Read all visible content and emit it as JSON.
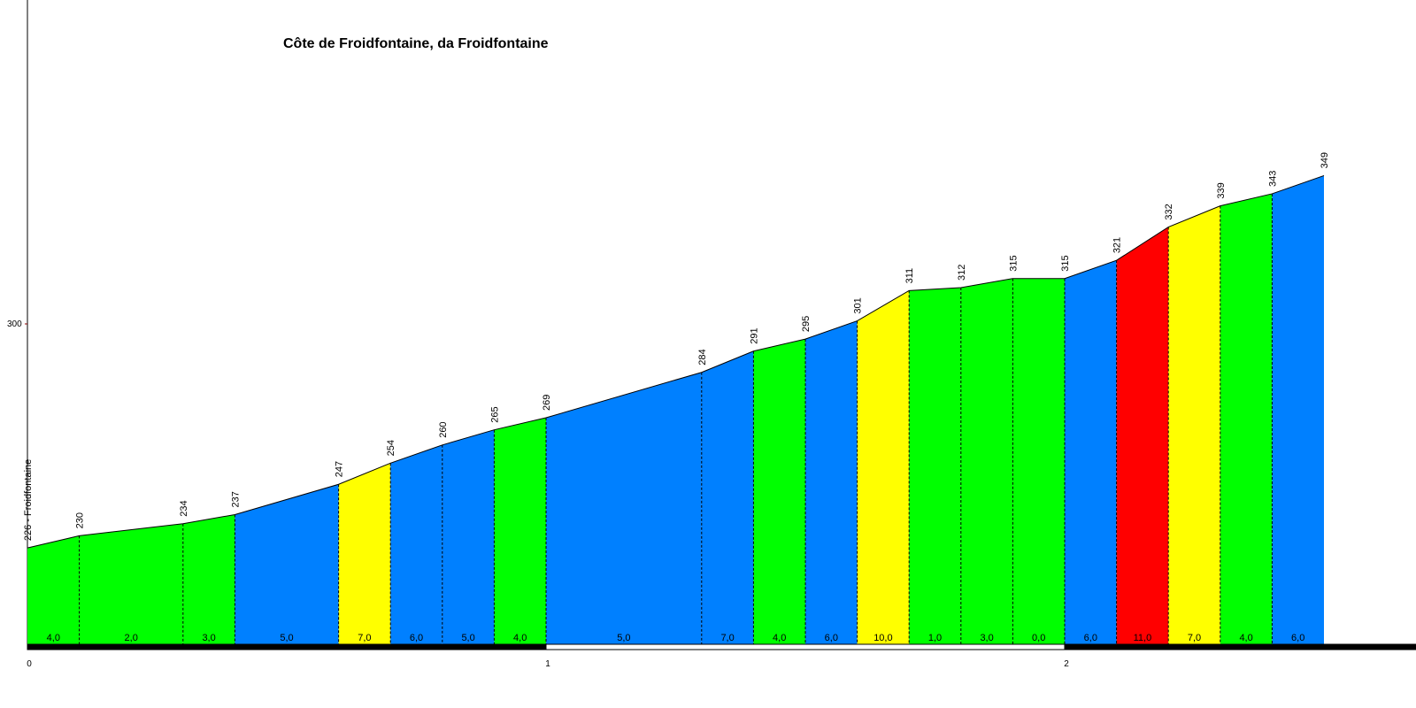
{
  "chart_data": {
    "type": "area",
    "title": "Côte de Froidfontaine, da Froidfontaine",
    "xlabel": "",
    "ylabel": "",
    "start_label": "Froidfontaine",
    "x_ticks": [
      0,
      1,
      2
    ],
    "y_ticks": [
      300
    ],
    "xlim": [
      0,
      2.6
    ],
    "ylim": [
      202,
      415
    ],
    "x": [
      0,
      0.1,
      0.3,
      0.4,
      0.6,
      0.7,
      0.8,
      0.9,
      1.0,
      1.3,
      1.4,
      1.5,
      1.6,
      1.7,
      1.8,
      1.9,
      2.0,
      2.1,
      2.2,
      2.3,
      2.4,
      2.5
    ],
    "elevations": [
      226,
      230,
      234,
      237,
      247,
      254,
      260,
      265,
      269,
      284,
      291,
      295,
      301,
      311,
      312,
      315,
      315,
      321,
      332,
      339,
      343,
      349
    ],
    "segments": [
      {
        "grade": "4,0",
        "color": "#00ff00"
      },
      {
        "grade": "2,0",
        "color": "#00ff00"
      },
      {
        "grade": "3,0",
        "color": "#00ff00"
      },
      {
        "grade": "5,0",
        "color": "#0080ff"
      },
      {
        "grade": "7,0",
        "color": "#ffff00"
      },
      {
        "grade": "6,0",
        "color": "#0080ff"
      },
      {
        "grade": "5,0",
        "color": "#0080ff"
      },
      {
        "grade": "4,0",
        "color": "#00ff00"
      },
      {
        "grade": "5,0",
        "color": "#0080ff"
      },
      {
        "grade": "7,0",
        "color": "#0080ff"
      },
      {
        "grade": "4,0",
        "color": "#00ff00"
      },
      {
        "grade": "6,0",
        "color": "#0080ff"
      },
      {
        "grade": "10,0",
        "color": "#ffff00"
      },
      {
        "grade": "1,0",
        "color": "#00ff00"
      },
      {
        "grade": "3,0",
        "color": "#00ff00"
      },
      {
        "grade": "0,0",
        "color": "#00ff00"
      },
      {
        "grade": "6,0",
        "color": "#0080ff"
      },
      {
        "grade": "11,0",
        "color": "#ff0000"
      },
      {
        "grade": "7,0",
        "color": "#ffff00"
      },
      {
        "grade": "4,0",
        "color": "#00ff00"
      },
      {
        "grade": "6,0",
        "color": "#0080ff"
      }
    ],
    "km_bar_colors": [
      "#000000",
      "#ffffff",
      "#000000"
    ],
    "grid": false,
    "legend": "none"
  }
}
